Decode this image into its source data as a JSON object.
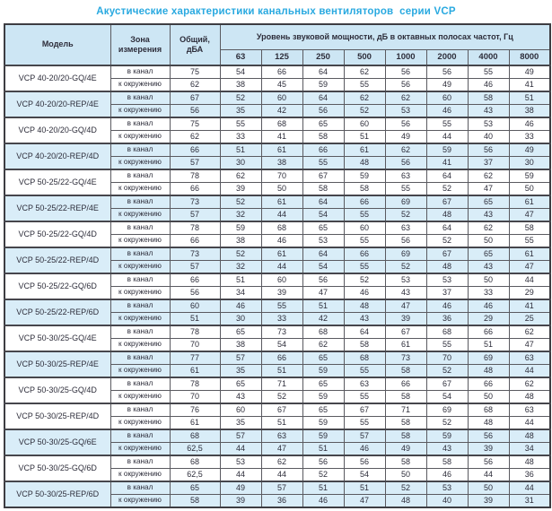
{
  "title": "Акустические характеристики канальных вентиляторов  серии VCP",
  "colors": {
    "accent_title": "#29a9e0",
    "header_bg": "#cde6f4",
    "shaded_row_bg": "#d9edf8",
    "text": "#2d2d3a",
    "border": "#5a5a60"
  },
  "table": {
    "headers": {
      "model": "Модель",
      "zone": "Зона измерения",
      "total": "Общий, дБА",
      "spl": "Уровень звуковой мощности, дБ в октавных полосах частот, Гц",
      "frequencies": [
        "63",
        "125",
        "250",
        "500",
        "1000",
        "2000",
        "4000",
        "8000"
      ]
    },
    "zone_labels": {
      "duct": "в канал",
      "ambient": "к окружению"
    },
    "rows": [
      {
        "model": "VCP 40-20/20-GQ/4E",
        "shaded": false,
        "duct": {
          "total": "75",
          "levels": [
            "54",
            "66",
            "64",
            "62",
            "56",
            "56",
            "55",
            "49"
          ]
        },
        "ambient": {
          "total": "62",
          "levels": [
            "38",
            "45",
            "59",
            "55",
            "56",
            "49",
            "46",
            "41"
          ]
        }
      },
      {
        "model": "VCP 40-20/20-REP/4E",
        "shaded": true,
        "duct": {
          "total": "67",
          "levels": [
            "52",
            "60",
            "64",
            "62",
            "62",
            "60",
            "58",
            "51"
          ]
        },
        "ambient": {
          "total": "56",
          "levels": [
            "35",
            "42",
            "56",
            "52",
            "53",
            "46",
            "43",
            "38"
          ]
        }
      },
      {
        "model": "VCP 40-20/20-GQ/4D",
        "shaded": false,
        "duct": {
          "total": "75",
          "levels": [
            "55",
            "68",
            "65",
            "60",
            "56",
            "55",
            "53",
            "46"
          ]
        },
        "ambient": {
          "total": "62",
          "levels": [
            "33",
            "41",
            "58",
            "51",
            "49",
            "44",
            "40",
            "33"
          ]
        }
      },
      {
        "model": "VCP 40-20/20-REP/4D",
        "shaded": true,
        "duct": {
          "total": "66",
          "levels": [
            "51",
            "61",
            "66",
            "61",
            "62",
            "59",
            "56",
            "49"
          ]
        },
        "ambient": {
          "total": "57",
          "levels": [
            "30",
            "38",
            "55",
            "48",
            "56",
            "41",
            "37",
            "30"
          ]
        }
      },
      {
        "model": "VCP 50-25/22-GQ/4E",
        "shaded": false,
        "duct": {
          "total": "78",
          "levels": [
            "62",
            "70",
            "67",
            "59",
            "63",
            "64",
            "62",
            "59"
          ]
        },
        "ambient": {
          "total": "66",
          "levels": [
            "39",
            "50",
            "58",
            "58",
            "55",
            "52",
            "47",
            "50"
          ]
        }
      },
      {
        "model": "VCP 50-25/22-REP/4E",
        "shaded": true,
        "duct": {
          "total": "73",
          "levels": [
            "52",
            "61",
            "64",
            "66",
            "69",
            "67",
            "65",
            "61"
          ]
        },
        "ambient": {
          "total": "57",
          "levels": [
            "32",
            "44",
            "54",
            "55",
            "52",
            "48",
            "43",
            "47"
          ]
        }
      },
      {
        "model": "VCP 50-25/22-GQ/4D",
        "shaded": false,
        "duct": {
          "total": "78",
          "levels": [
            "59",
            "68",
            "65",
            "60",
            "63",
            "64",
            "62",
            "58"
          ]
        },
        "ambient": {
          "total": "66",
          "levels": [
            "38",
            "46",
            "53",
            "55",
            "56",
            "52",
            "50",
            "55"
          ]
        }
      },
      {
        "model": "VCP 50-25/22-REP/4D",
        "shaded": true,
        "duct": {
          "total": "73",
          "levels": [
            "52",
            "61",
            "64",
            "66",
            "69",
            "67",
            "65",
            "61"
          ]
        },
        "ambient": {
          "total": "57",
          "levels": [
            "32",
            "44",
            "54",
            "55",
            "52",
            "48",
            "43",
            "47"
          ]
        }
      },
      {
        "model": "VCP 50-25/22-GQ/6D",
        "shaded": false,
        "duct": {
          "total": "66",
          "levels": [
            "51",
            "60",
            "56",
            "52",
            "53",
            "53",
            "50",
            "44"
          ]
        },
        "ambient": {
          "total": "56",
          "levels": [
            "34",
            "39",
            "47",
            "46",
            "43",
            "37",
            "33",
            "29"
          ]
        }
      },
      {
        "model": "VCP 50-25/22-REP/6D",
        "shaded": true,
        "duct": {
          "total": "60",
          "levels": [
            "46",
            "55",
            "51",
            "48",
            "47",
            "46",
            "46",
            "41"
          ]
        },
        "ambient": {
          "total": "51",
          "levels": [
            "30",
            "33",
            "42",
            "43",
            "39",
            "36",
            "29",
            "25"
          ]
        }
      },
      {
        "model": "VCP 50-30/25-GQ/4E",
        "shaded": false,
        "duct": {
          "total": "78",
          "levels": [
            "65",
            "73",
            "68",
            "64",
            "67",
            "68",
            "66",
            "62"
          ]
        },
        "ambient": {
          "total": "70",
          "levels": [
            "38",
            "54",
            "62",
            "58",
            "61",
            "55",
            "51",
            "47"
          ]
        }
      },
      {
        "model": "VCP 50-30/25-REP/4E",
        "shaded": true,
        "duct": {
          "total": "77",
          "levels": [
            "57",
            "66",
            "65",
            "68",
            "73",
            "70",
            "69",
            "63"
          ]
        },
        "ambient": {
          "total": "61",
          "levels": [
            "35",
            "51",
            "59",
            "55",
            "58",
            "52",
            "48",
            "44"
          ]
        }
      },
      {
        "model": "VCP 50-30/25-GQ/4D",
        "shaded": false,
        "duct": {
          "total": "78",
          "levels": [
            "65",
            "71",
            "65",
            "63",
            "66",
            "67",
            "66",
            "62"
          ]
        },
        "ambient": {
          "total": "70",
          "levels": [
            "43",
            "52",
            "59",
            "55",
            "58",
            "54",
            "50",
            "48"
          ]
        }
      },
      {
        "model": "VCP 50-30/25-REP/4D",
        "shaded": false,
        "duct": {
          "total": "76",
          "levels": [
            "60",
            "67",
            "65",
            "67",
            "71",
            "69",
            "68",
            "63"
          ]
        },
        "ambient": {
          "total": "61",
          "levels": [
            "35",
            "51",
            "59",
            "55",
            "58",
            "52",
            "48",
            "44"
          ]
        }
      },
      {
        "model": "VCP 50-30/25-GQ/6E",
        "shaded": true,
        "duct": {
          "total": "68",
          "levels": [
            "57",
            "63",
            "59",
            "57",
            "58",
            "59",
            "56",
            "48"
          ]
        },
        "ambient": {
          "total": "62,5",
          "levels": [
            "44",
            "47",
            "51",
            "46",
            "49",
            "43",
            "39",
            "34"
          ]
        }
      },
      {
        "model": "VCP 50-30/25-GQ/6D",
        "shaded": false,
        "duct": {
          "total": "68",
          "levels": [
            "53",
            "62",
            "56",
            "56",
            "58",
            "58",
            "56",
            "48"
          ]
        },
        "ambient": {
          "total": "62,5",
          "levels": [
            "44",
            "44",
            "52",
            "54",
            "50",
            "46",
            "44",
            "36"
          ]
        }
      },
      {
        "model": "VCP 50-30/25-REP/6D",
        "shaded": true,
        "duct": {
          "total": "65",
          "levels": [
            "49",
            "57",
            "51",
            "51",
            "52",
            "53",
            "50",
            "44"
          ]
        },
        "ambient": {
          "total": "58",
          "levels": [
            "39",
            "36",
            "46",
            "47",
            "48",
            "40",
            "39",
            "31"
          ]
        }
      }
    ]
  }
}
